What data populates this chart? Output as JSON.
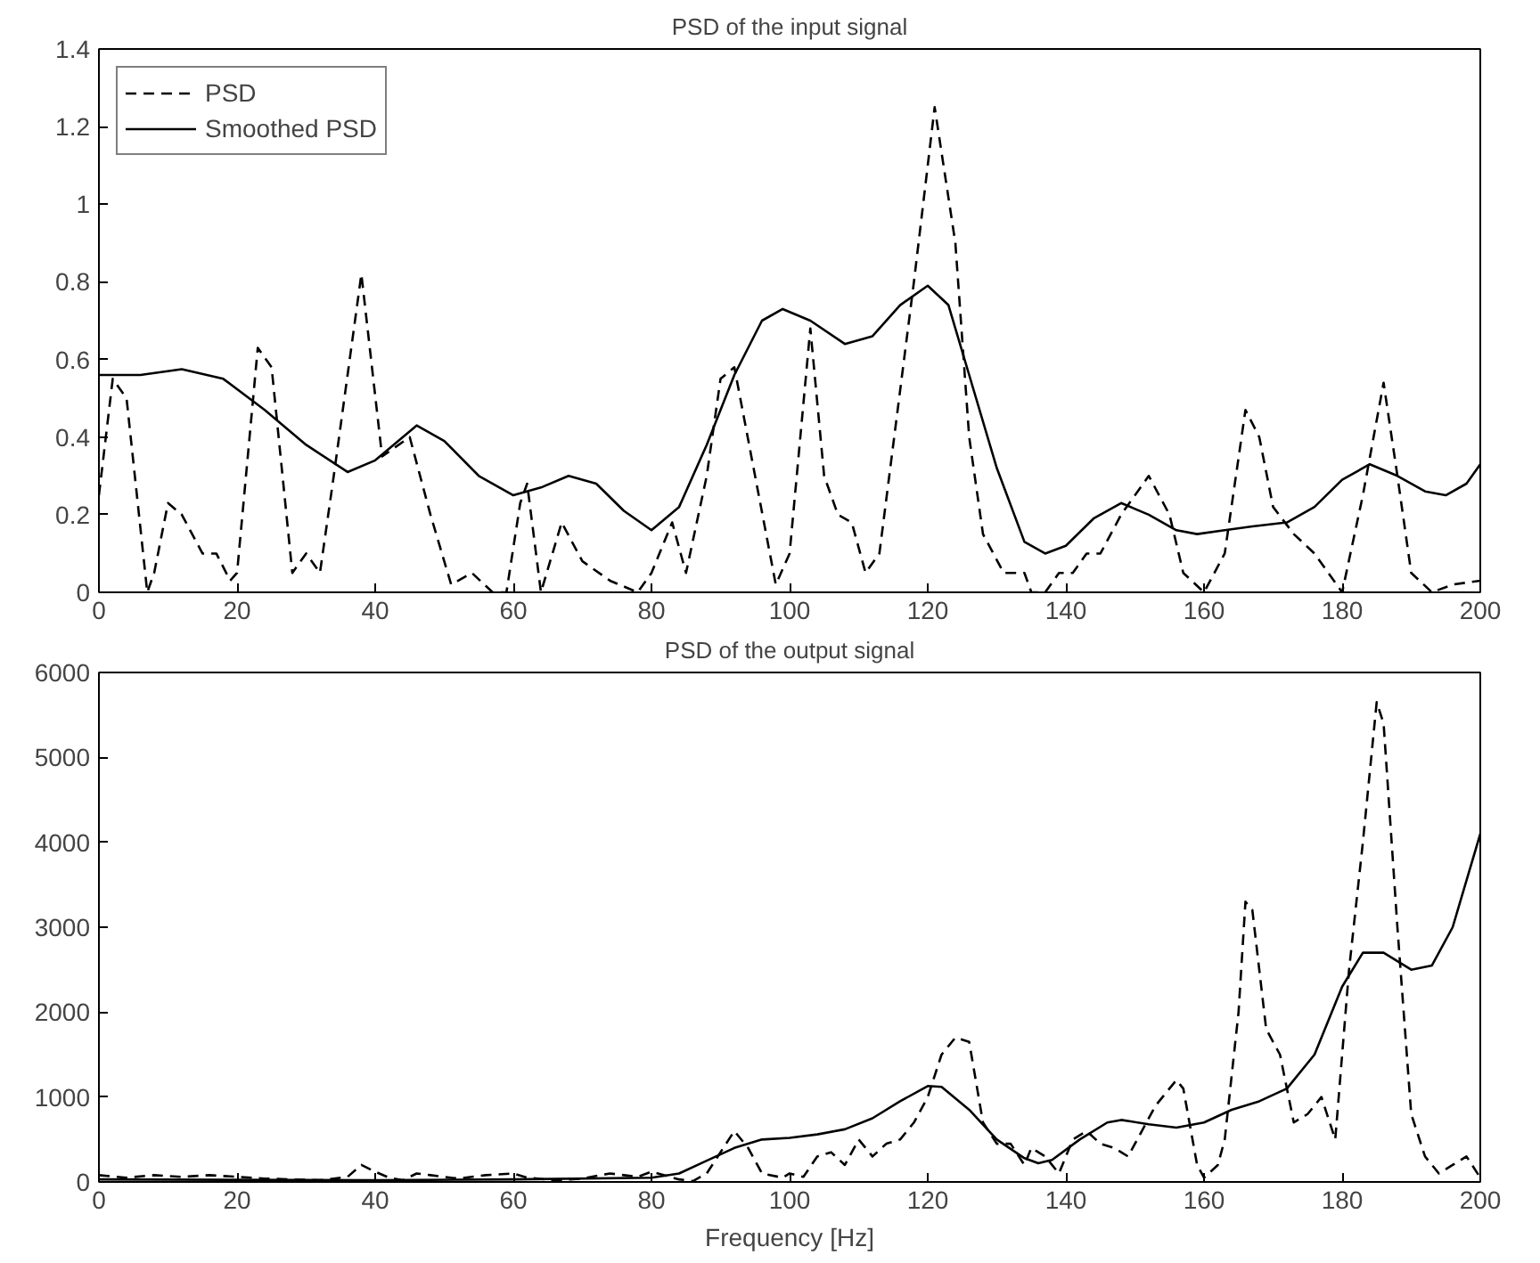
{
  "chart_data": [
    {
      "type": "line",
      "title": "PSD of the input signal",
      "xlim": [
        0,
        200
      ],
      "ylim": [
        0,
        1.4
      ],
      "xticks": [
        0,
        20,
        40,
        60,
        80,
        100,
        120,
        140,
        160,
        180,
        200
      ],
      "yticks": [
        0,
        0.2,
        0.4,
        0.6,
        0.8,
        1,
        1.2,
        1.4
      ],
      "grid": false,
      "legend": "top left",
      "series": [
        {
          "name": "PSD",
          "color": "#000000",
          "line_style": "dashed",
          "x": [
            0,
            2,
            4,
            7,
            8,
            10,
            12,
            15,
            17,
            19,
            20,
            23,
            25,
            28,
            30,
            32,
            34,
            38,
            41,
            45,
            48,
            51,
            54,
            57,
            59,
            61,
            62,
            64,
            67,
            70,
            74,
            78,
            80,
            83,
            85,
            88,
            90,
            92,
            95,
            98,
            100,
            103,
            105,
            107,
            109,
            111,
            113,
            118,
            121,
            124,
            126,
            128,
            131,
            134,
            135,
            137,
            139,
            141,
            143,
            145,
            148,
            152,
            155,
            157,
            160,
            163,
            166,
            168,
            170,
            173,
            176,
            178,
            180,
            183,
            186,
            188,
            190,
            193,
            196,
            200
          ],
          "values": [
            0.25,
            0.55,
            0.5,
            0.0,
            0.05,
            0.23,
            0.2,
            0.1,
            0.1,
            0.03,
            0.05,
            0.63,
            0.58,
            0.05,
            0.1,
            0.05,
            0.3,
            0.82,
            0.35,
            0.4,
            0.2,
            0.02,
            0.05,
            0.0,
            0.0,
            0.23,
            0.28,
            0.0,
            0.18,
            0.08,
            0.03,
            0.0,
            0.05,
            0.18,
            0.05,
            0.3,
            0.55,
            0.58,
            0.3,
            0.02,
            0.1,
            0.68,
            0.3,
            0.2,
            0.18,
            0.05,
            0.1,
            0.8,
            1.25,
            0.9,
            0.4,
            0.15,
            0.05,
            0.05,
            0.0,
            0.0,
            0.05,
            0.05,
            0.1,
            0.1,
            0.2,
            0.3,
            0.2,
            0.05,
            0.0,
            0.1,
            0.47,
            0.4,
            0.22,
            0.15,
            0.1,
            0.05,
            0.0,
            0.25,
            0.54,
            0.3,
            0.05,
            0.0,
            0.02,
            0.03
          ]
        },
        {
          "name": "Smoothed PSD",
          "color": "#000000",
          "line_style": "solid",
          "x": [
            0,
            6,
            12,
            18,
            24,
            30,
            36,
            40,
            46,
            50,
            55,
            60,
            64,
            68,
            72,
            76,
            80,
            84,
            88,
            92,
            96,
            99,
            103,
            108,
            112,
            116,
            120,
            123,
            126,
            130,
            134,
            137,
            140,
            144,
            148,
            152,
            156,
            159,
            163,
            167,
            172,
            176,
            180,
            184,
            188,
            192,
            195,
            198,
            200
          ],
          "values": [
            0.56,
            0.56,
            0.575,
            0.55,
            0.47,
            0.38,
            0.31,
            0.34,
            0.43,
            0.39,
            0.3,
            0.25,
            0.27,
            0.3,
            0.28,
            0.21,
            0.16,
            0.22,
            0.38,
            0.56,
            0.7,
            0.73,
            0.7,
            0.64,
            0.66,
            0.74,
            0.79,
            0.74,
            0.56,
            0.32,
            0.13,
            0.1,
            0.12,
            0.19,
            0.23,
            0.2,
            0.16,
            0.15,
            0.16,
            0.17,
            0.18,
            0.22,
            0.29,
            0.33,
            0.3,
            0.26,
            0.25,
            0.28,
            0.33
          ]
        }
      ]
    },
    {
      "type": "line",
      "title": "PSD of the output signal",
      "xlabel": "Frequency [Hz]",
      "xlim": [
        0,
        200
      ],
      "ylim": [
        0,
        6000
      ],
      "xticks": [
        0,
        20,
        40,
        60,
        80,
        100,
        120,
        140,
        160,
        180,
        200
      ],
      "yticks": [
        0,
        1000,
        2000,
        3000,
        4000,
        5000,
        6000
      ],
      "grid": false,
      "series": [
        {
          "color": "#000000",
          "line_style": "dashed",
          "x": [
            0,
            4,
            8,
            12,
            16,
            20,
            24,
            28,
            32,
            36,
            38,
            40,
            42,
            44,
            46,
            48,
            52,
            56,
            60,
            62,
            66,
            70,
            74,
            78,
            80,
            84,
            86,
            88,
            92,
            94,
            96,
            99,
            100,
            102,
            104,
            106,
            108,
            110,
            112,
            114,
            116,
            118,
            120,
            122,
            124,
            126,
            128,
            130,
            132,
            134,
            135,
            137,
            139,
            141,
            143,
            145,
            147,
            149,
            151,
            153,
            156,
            157,
            159,
            160,
            162,
            163,
            165,
            166,
            167,
            169,
            171,
            173,
            175,
            177,
            179,
            181,
            183,
            185,
            186,
            188,
            190,
            192,
            194,
            196,
            198,
            200
          ],
          "values": [
            80,
            50,
            80,
            60,
            80,
            60,
            40,
            30,
            20,
            60,
            200,
            120,
            50,
            20,
            100,
            80,
            40,
            80,
            100,
            50,
            20,
            40,
            100,
            60,
            120,
            30,
            10,
            100,
            600,
            400,
            100,
            50,
            100,
            60,
            300,
            350,
            200,
            500,
            300,
            450,
            500,
            700,
            1000,
            1500,
            1700,
            1650,
            700,
            450,
            450,
            200,
            400,
            300,
            100,
            500,
            600,
            450,
            400,
            300,
            600,
            900,
            1200,
            1100,
            200,
            50,
            200,
            500,
            2000,
            3300,
            3200,
            1800,
            1500,
            700,
            800,
            1000,
            500,
            2500,
            4000,
            5650,
            5400,
            3000,
            800,
            300,
            100,
            200,
            300,
            50
          ]
        },
        {
          "color": "#000000",
          "line_style": "solid",
          "x": [
            0,
            40,
            60,
            80,
            84,
            88,
            92,
            96,
            100,
            104,
            108,
            112,
            116,
            120,
            122,
            126,
            130,
            134,
            136,
            138,
            142,
            146,
            148,
            152,
            156,
            160,
            164,
            168,
            172,
            176,
            180,
            183,
            186,
            190,
            193,
            196,
            200
          ],
          "values": [
            30,
            20,
            30,
            50,
            100,
            250,
            400,
            500,
            520,
            560,
            620,
            750,
            950,
            1130,
            1120,
            850,
            500,
            280,
            220,
            260,
            500,
            700,
            730,
            680,
            640,
            700,
            850,
            950,
            1100,
            1500,
            2300,
            2700,
            2700,
            2500,
            2550,
            3000,
            4100
          ]
        }
      ]
    }
  ]
}
